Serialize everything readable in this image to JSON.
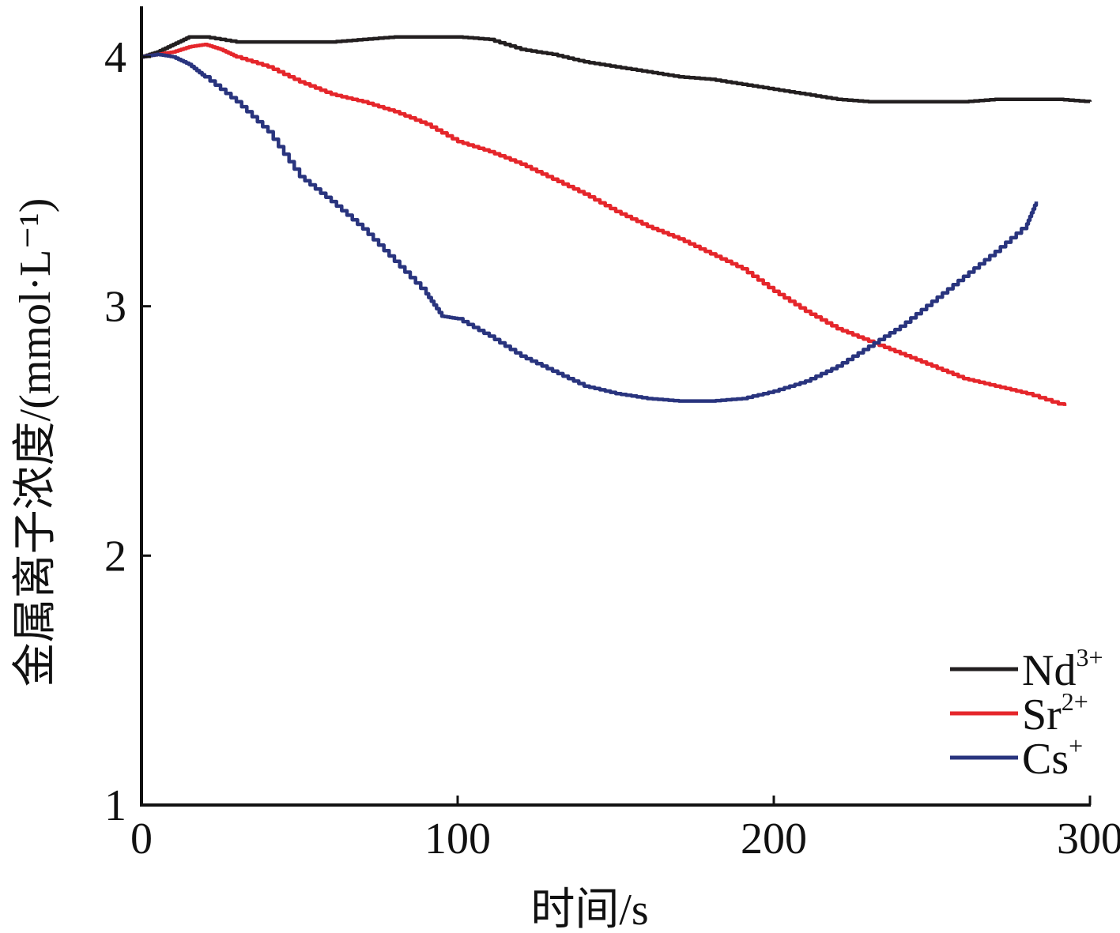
{
  "chart_data": {
    "type": "line",
    "title": "",
    "xlabel": "时间/s",
    "ylabel": "金属离子浓度/(mmol·L⁻¹)",
    "xlim": [
      0,
      300
    ],
    "ylim": [
      1,
      4.2
    ],
    "xticks": [
      0,
      100,
      200,
      300
    ],
    "yticks": [
      1,
      2,
      3,
      4
    ],
    "xtick_labels": [
      "0",
      "100",
      "200",
      "300"
    ],
    "ytick_labels": [
      "1",
      "2",
      "3",
      "4"
    ],
    "grid": false,
    "legend_position": "bottom-right",
    "series": [
      {
        "name": "Nd³⁺",
        "label_base": "Nd",
        "label_sup": "3+",
        "color": "#231f20",
        "x": [
          0,
          5,
          10,
          15,
          20,
          30,
          40,
          50,
          60,
          70,
          80,
          90,
          100,
          110,
          120,
          130,
          140,
          150,
          160,
          170,
          180,
          190,
          200,
          210,
          220,
          230,
          240,
          250,
          260,
          270,
          280,
          290,
          300
        ],
        "y": [
          4.0,
          4.02,
          4.05,
          4.08,
          4.08,
          4.06,
          4.06,
          4.06,
          4.06,
          4.07,
          4.08,
          4.08,
          4.08,
          4.07,
          4.03,
          4.01,
          3.98,
          3.96,
          3.94,
          3.92,
          3.91,
          3.89,
          3.87,
          3.85,
          3.83,
          3.82,
          3.82,
          3.82,
          3.82,
          3.83,
          3.83,
          3.83,
          3.82
        ]
      },
      {
        "name": "Sr²⁺",
        "label_base": "Sr",
        "label_sup": "2+",
        "color": "#e5262b",
        "x": [
          0,
          5,
          10,
          15,
          20,
          25,
          30,
          40,
          50,
          60,
          70,
          80,
          90,
          100,
          110,
          120,
          130,
          140,
          150,
          160,
          170,
          180,
          190,
          200,
          210,
          220,
          230,
          240,
          250,
          260,
          270,
          280,
          292
        ],
        "y": [
          4.0,
          4.01,
          4.02,
          4.04,
          4.05,
          4.03,
          4.0,
          3.96,
          3.9,
          3.85,
          3.82,
          3.78,
          3.73,
          3.66,
          3.62,
          3.57,
          3.51,
          3.45,
          3.38,
          3.32,
          3.27,
          3.21,
          3.15,
          3.06,
          2.98,
          2.91,
          2.86,
          2.81,
          2.76,
          2.71,
          2.68,
          2.65,
          2.6
        ]
      },
      {
        "name": "Cs⁺",
        "label_base": "Cs",
        "label_sup": "+",
        "color": "#29347e",
        "x": [
          0,
          5,
          10,
          15,
          20,
          30,
          40,
          50,
          60,
          70,
          80,
          90,
          95,
          100,
          110,
          120,
          130,
          140,
          150,
          160,
          170,
          180,
          190,
          200,
          210,
          220,
          230,
          240,
          250,
          260,
          270,
          280,
          283
        ],
        "y": [
          4.0,
          4.01,
          4.0,
          3.97,
          3.92,
          3.82,
          3.7,
          3.52,
          3.42,
          3.31,
          3.18,
          3.05,
          2.96,
          2.95,
          2.88,
          2.8,
          2.74,
          2.68,
          2.65,
          2.63,
          2.62,
          2.62,
          2.63,
          2.66,
          2.7,
          2.76,
          2.84,
          2.92,
          3.02,
          3.12,
          3.22,
          3.33,
          3.42
        ]
      }
    ]
  }
}
